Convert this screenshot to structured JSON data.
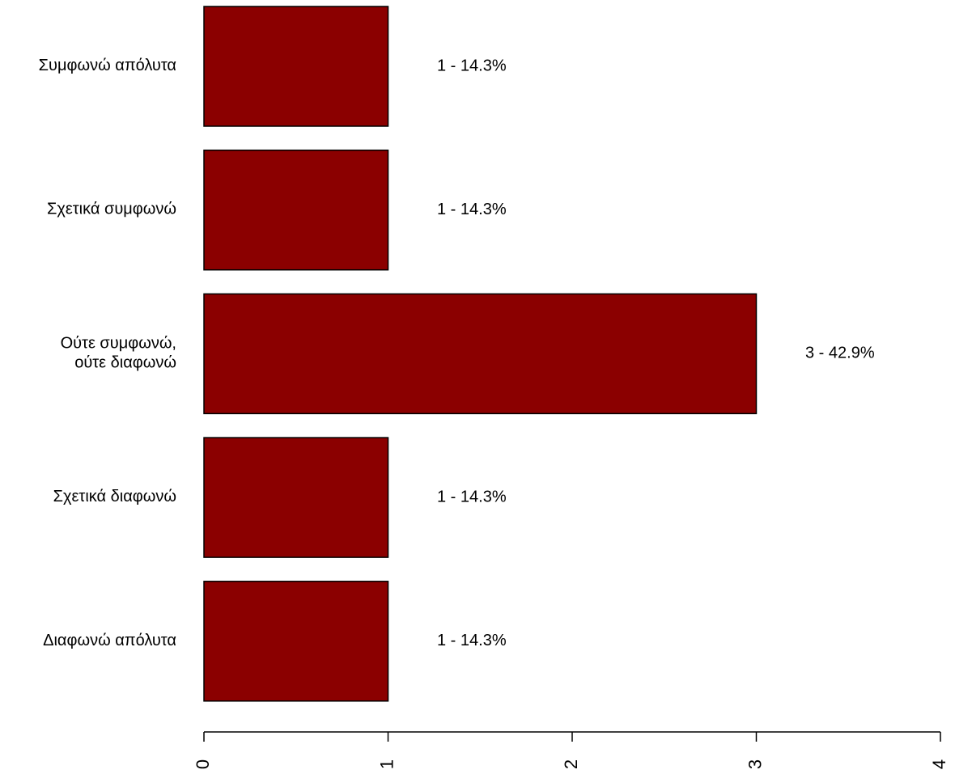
{
  "chart_data": {
    "type": "bar",
    "orientation": "horizontal",
    "categories": [
      [
        "Συμφωνώ απόλυτα"
      ],
      [
        "Σχετικά συμφωνώ"
      ],
      [
        "Ούτε συμφωνώ,",
        "ούτε διαφωνώ"
      ],
      [
        "Σχετικά διαφωνώ"
      ],
      [
        "Διαφωνώ απόλυτα"
      ]
    ],
    "values": [
      1,
      1,
      3,
      1,
      1
    ],
    "data_labels": [
      "1 - 14.3%",
      "1 - 14.3%",
      "3 - 42.9%",
      "1 - 14.3%",
      "1 - 14.3%"
    ],
    "xlim": [
      0,
      4
    ],
    "x_ticks": [
      "0",
      "1",
      "2",
      "3",
      "4"
    ],
    "bar_color": "#8b0000",
    "grid": false,
    "legend": "none"
  }
}
